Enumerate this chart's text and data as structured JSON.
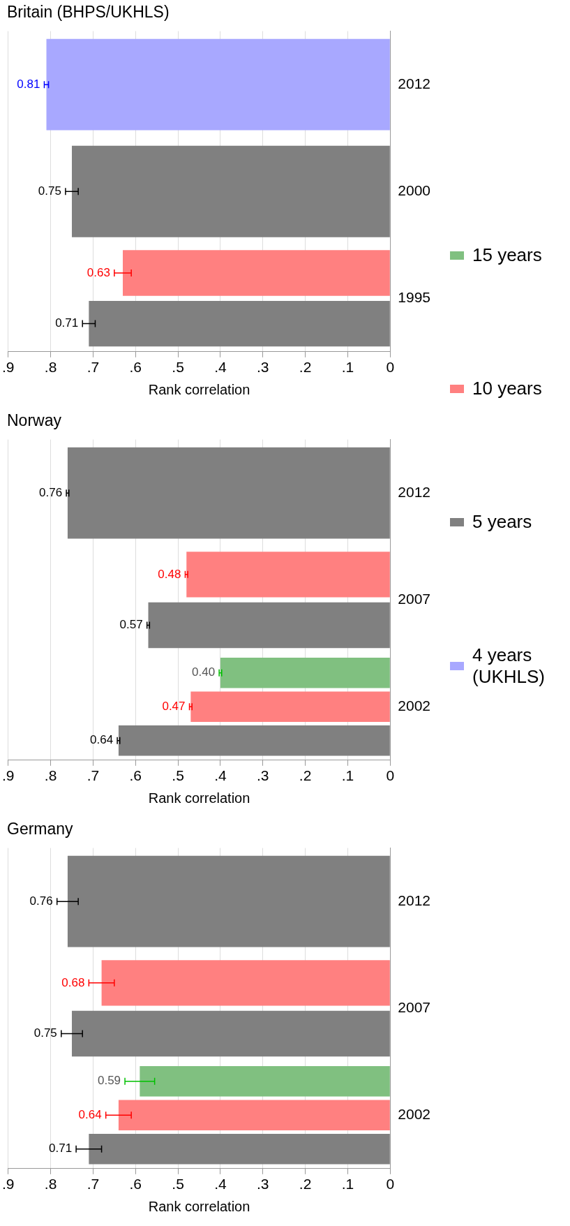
{
  "chart_data": [
    {
      "type": "bar",
      "orientation": "horizontal",
      "title": "Britain (BHPS/UKHLS)",
      "xlabel": "Rank correlation",
      "categories": [
        "2012",
        "2000",
        "1995"
      ],
      "xlim": [
        0.9,
        0
      ],
      "xticks": [
        {
          "value": 0.9,
          "label": ".9"
        },
        {
          "value": 0.8,
          "label": ".8"
        },
        {
          "value": 0.7,
          "label": ".7"
        },
        {
          "value": 0.6,
          "label": ".6"
        },
        {
          "value": 0.5,
          "label": ".5"
        },
        {
          "value": 0.4,
          "label": ".4"
        },
        {
          "value": 0.3,
          "label": ".3"
        },
        {
          "value": 0.2,
          "label": ".2"
        },
        {
          "value": 0.1,
          "label": ".1"
        },
        {
          "value": 0,
          "label": "0"
        }
      ],
      "grid": "x",
      "legend": "right",
      "series": [
        {
          "name": "4 years (UKHLS)",
          "color": "#a8a8ff",
          "values": [
            0.81,
            null,
            null
          ],
          "errors": [
            0.005,
            null,
            null
          ],
          "value_labels": [
            "0.81",
            null,
            null
          ]
        },
        {
          "name": "10 years",
          "color": "#ff8080",
          "values": [
            null,
            null,
            0.63
          ],
          "errors": [
            null,
            null,
            0.02
          ],
          "value_labels": [
            null,
            null,
            "0.63"
          ]
        },
        {
          "name": "5 years",
          "color": "#808080",
          "values": [
            null,
            0.75,
            0.71
          ],
          "errors": [
            null,
            0.015,
            0.015
          ],
          "value_labels": [
            null,
            "0.75",
            "0.71"
          ]
        }
      ]
    },
    {
      "type": "bar",
      "orientation": "horizontal",
      "title": "Norway",
      "xlabel": "Rank correlation",
      "categories": [
        "2012",
        "2007",
        "2002"
      ],
      "xlim": [
        0.9,
        0
      ],
      "xticks": [
        {
          "value": 0.9,
          "label": ".9"
        },
        {
          "value": 0.8,
          "label": ".8"
        },
        {
          "value": 0.7,
          "label": ".7"
        },
        {
          "value": 0.6,
          "label": ".6"
        },
        {
          "value": 0.5,
          "label": ".5"
        },
        {
          "value": 0.4,
          "label": ".4"
        },
        {
          "value": 0.3,
          "label": ".3"
        },
        {
          "value": 0.2,
          "label": ".2"
        },
        {
          "value": 0.1,
          "label": ".1"
        },
        {
          "value": 0,
          "label": "0"
        }
      ],
      "grid": "x",
      "legend": "right",
      "series": [
        {
          "name": "15 years",
          "color": "#80c080",
          "values": [
            null,
            null,
            0.4
          ],
          "errors": [
            null,
            null,
            0.003
          ],
          "value_labels": [
            null,
            null,
            "0.40"
          ]
        },
        {
          "name": "10 years",
          "color": "#ff8080",
          "values": [
            null,
            0.48,
            0.47
          ],
          "errors": [
            null,
            0.003,
            0.003
          ],
          "value_labels": [
            null,
            "0.48",
            "0.47"
          ]
        },
        {
          "name": "5 years",
          "color": "#808080",
          "values": [
            0.76,
            0.57,
            0.64
          ],
          "errors": [
            0.003,
            0.003,
            0.003
          ],
          "value_labels": [
            "0.76",
            "0.57",
            "0.64"
          ]
        }
      ]
    },
    {
      "type": "bar",
      "orientation": "horizontal",
      "title": "Germany",
      "xlabel": "Rank correlation",
      "categories": [
        "2012",
        "2007",
        "2002"
      ],
      "xlim": [
        0.9,
        0
      ],
      "xticks": [
        {
          "value": 0.9,
          "label": ".9"
        },
        {
          "value": 0.8,
          "label": ".8"
        },
        {
          "value": 0.7,
          "label": ".7"
        },
        {
          "value": 0.6,
          "label": ".6"
        },
        {
          "value": 0.5,
          "label": ".5"
        },
        {
          "value": 0.4,
          "label": ".4"
        },
        {
          "value": 0.3,
          "label": ".3"
        },
        {
          "value": 0.2,
          "label": ".2"
        },
        {
          "value": 0.1,
          "label": ".1"
        },
        {
          "value": 0,
          "label": "0"
        }
      ],
      "grid": "x",
      "legend": "right",
      "series": [
        {
          "name": "15 years",
          "color": "#80c080",
          "values": [
            null,
            null,
            0.59
          ],
          "errors": [
            null,
            null,
            0.035
          ],
          "value_labels": [
            null,
            null,
            "0.59"
          ]
        },
        {
          "name": "10 years",
          "color": "#ff8080",
          "values": [
            null,
            0.68,
            0.64
          ],
          "errors": [
            null,
            0.03,
            0.03
          ],
          "value_labels": [
            null,
            "0.68",
            "0.64"
          ]
        },
        {
          "name": "5 years",
          "color": "#808080",
          "values": [
            0.76,
            0.75,
            0.71
          ],
          "errors": [
            0.025,
            0.025,
            0.03
          ],
          "value_labels": [
            "0.76",
            "0.75",
            "0.71"
          ]
        }
      ]
    }
  ]
}
